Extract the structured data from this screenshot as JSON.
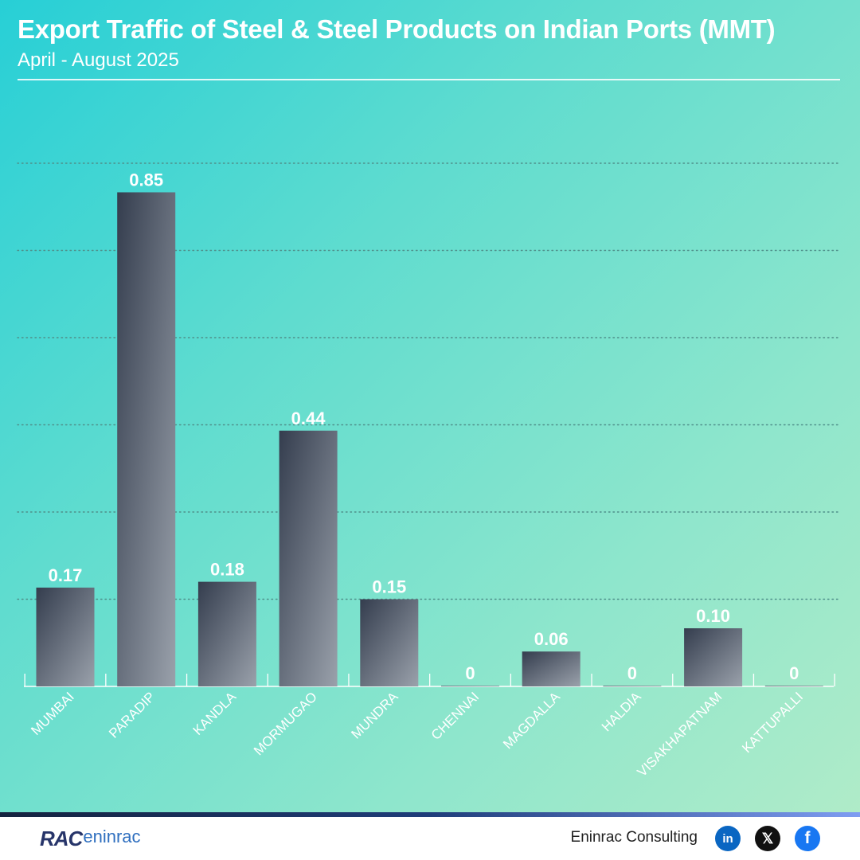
{
  "header": {
    "title": "Export Traffic of Steel & Steel Products on Indian Ports (MMT)",
    "subtitle": "April - August 2025"
  },
  "chart_data": {
    "type": "bar",
    "categories": [
      "MUMBAI",
      "PARADIP",
      "KANDLA",
      "MORMUGAO",
      "MUNDRA",
      "CHENNAI",
      "MAGDALLA",
      "HALDIA",
      "VISAKHAPATNAM",
      "KATTUPALLI"
    ],
    "values": [
      0.17,
      0.85,
      0.18,
      0.44,
      0.15,
      0,
      0.06,
      0,
      0.1,
      0
    ],
    "value_labels": [
      "0.17",
      "0.85",
      "0.18",
      "0.44",
      "0.15",
      "0",
      "0.06",
      "0",
      "0.10",
      "0"
    ],
    "title": "Export Traffic of Steel & Steel Products on Indian Ports (MMT)",
    "subtitle": "April - August 2025",
    "ylim": [
      0,
      1.0
    ],
    "grid": true,
    "colors": {
      "bar_top": "#343d4e",
      "bar_bottom": "#9aa1ab",
      "grid": "#4f8f8a"
    }
  },
  "footer": {
    "logo_mark": "RAC",
    "logo_text": "eninrac",
    "brand": "Eninrac Consulting",
    "icons": [
      "linkedin-icon",
      "x-icon",
      "facebook-icon"
    ],
    "linkedin_glyph": "in",
    "x_glyph": "𝕏",
    "facebook_glyph": "f"
  }
}
